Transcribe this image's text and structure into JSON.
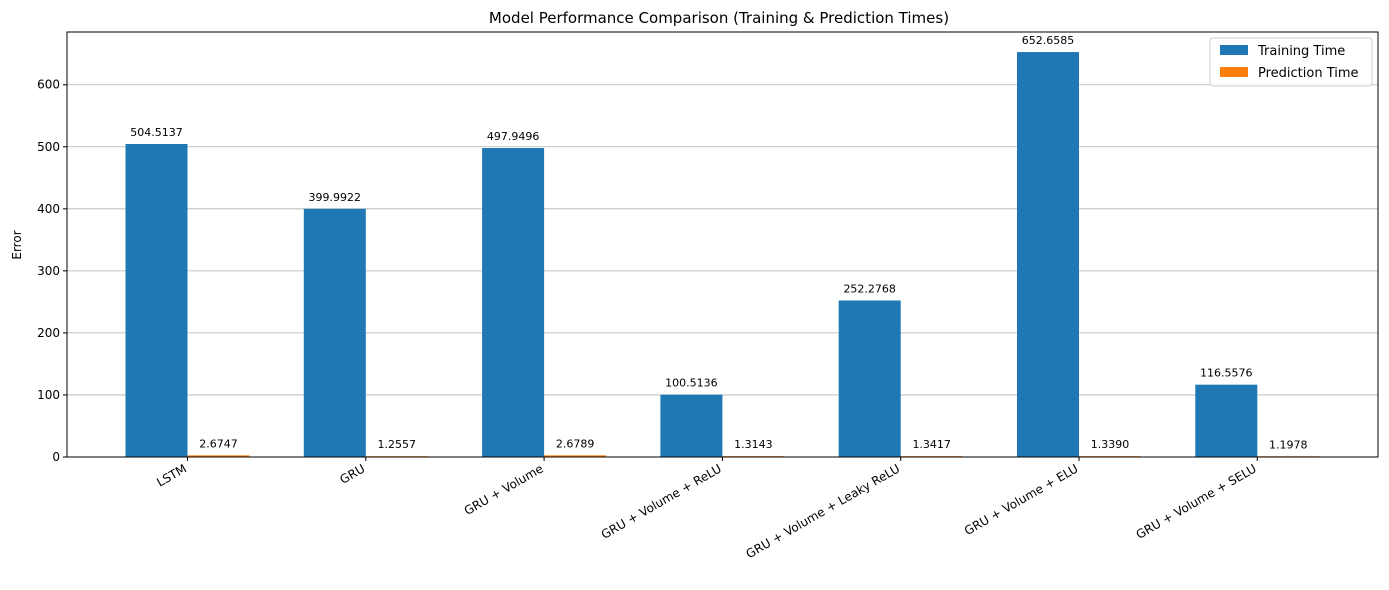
{
  "chart_data": {
    "type": "bar",
    "title": "Model Performance Comparison (Training & Prediction Times)",
    "xlabel": "",
    "ylabel": "Error",
    "ylim": [
      0,
      685
    ],
    "yticks": [
      "0",
      "100",
      "200",
      "300",
      "400",
      "500",
      "600"
    ],
    "grid": "horizontal",
    "legend_position": "top-right",
    "categories": [
      "LSTM",
      "GRU",
      "GRU + Volume",
      "GRU + Volume + ReLU",
      "GRU + Volume + Leaky ReLU",
      "GRU + Volume + ELU",
      "GRU + Volume + SELU"
    ],
    "series": [
      {
        "name": "Training Time",
        "color": "#1f77b4",
        "values": [
          504.5137,
          399.9922,
          497.9496,
          100.5136,
          252.2768,
          652.6585,
          116.5576
        ],
        "labels": [
          "504.5137",
          "399.9922",
          "497.9496",
          "100.5136",
          "252.2768",
          "652.6585",
          "116.5576"
        ]
      },
      {
        "name": "Prediction Time",
        "color": "#ff7f0e",
        "values": [
          2.6747,
          1.2557,
          2.6789,
          1.3143,
          1.3417,
          1.339,
          1.1978
        ],
        "labels": [
          "2.6747",
          "1.2557",
          "2.6789",
          "1.3143",
          "1.3417",
          "1.3390",
          "1.1978"
        ]
      }
    ]
  }
}
